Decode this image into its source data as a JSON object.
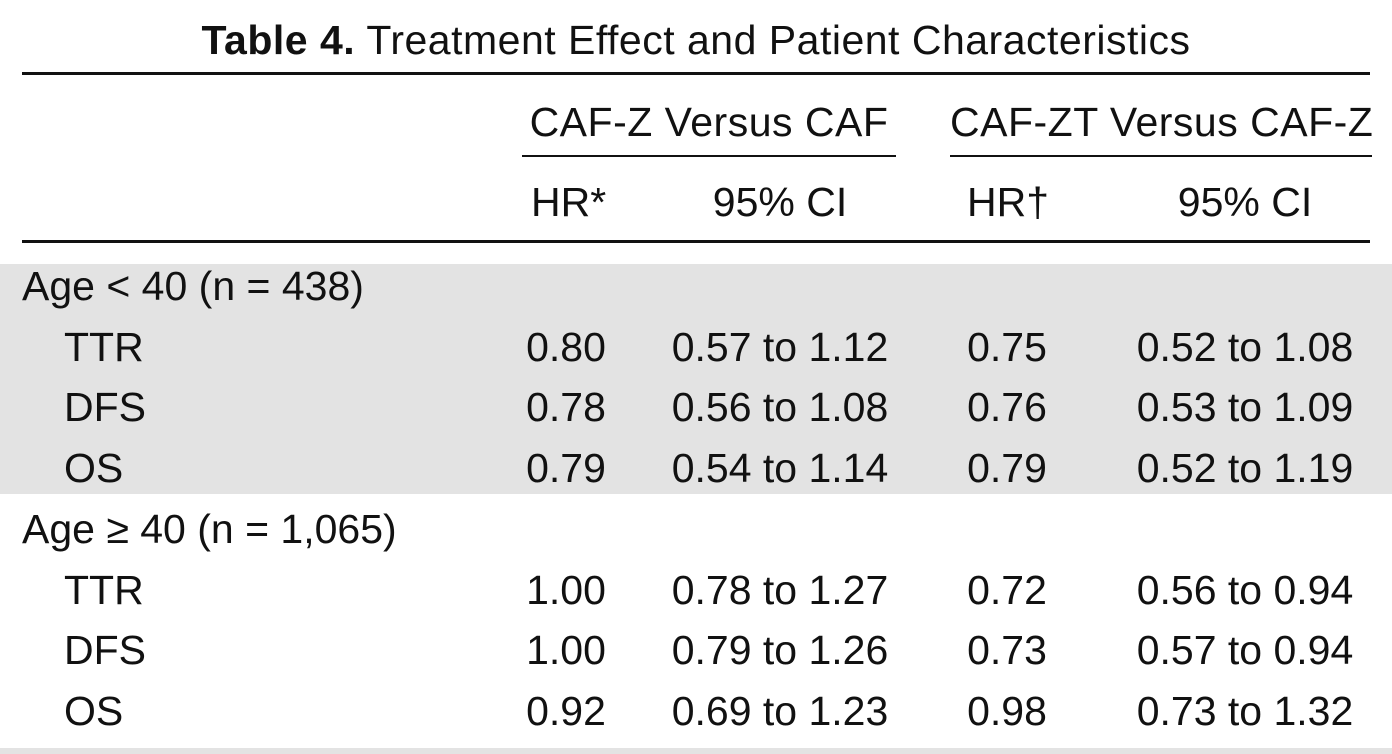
{
  "table": {
    "title_label": "Table 4.",
    "title_text": " Treatment Effect and Patient Characteristics",
    "group_headers": [
      "CAF-Z Versus CAF",
      "CAF-ZT Versus CAF-Z"
    ],
    "sub_headers": [
      "HR*",
      "95% CI",
      "HR†",
      "95% CI"
    ],
    "shading_color": "#e3e3e3",
    "sections": [
      {
        "label": "Age < 40 (n = 438)",
        "shaded": true,
        "rows": [
          {
            "name": "TTR",
            "hr1": "0.80",
            "ci1": "0.57 to 1.12",
            "hr2": "0.75",
            "ci2": "0.52 to 1.08"
          },
          {
            "name": "DFS",
            "hr1": "0.78",
            "ci1": "0.56 to 1.08",
            "hr2": "0.76",
            "ci2": "0.53 to 1.09"
          },
          {
            "name": "OS",
            "hr1": "0.79",
            "ci1": "0.54 to 1.14",
            "hr2": "0.79",
            "ci2": "0.52 to 1.19"
          }
        ]
      },
      {
        "label": "Age ≥ 40 (n = 1,065)",
        "shaded": false,
        "rows": [
          {
            "name": "TTR",
            "hr1": "1.00",
            "ci1": "0.78 to 1.27",
            "hr2": "0.72",
            "ci2": "0.56 to 0.94"
          },
          {
            "name": "DFS",
            "hr1": "1.00",
            "ci1": "0.79 to 1.26",
            "hr2": "0.73",
            "ci2": "0.57 to 0.94"
          },
          {
            "name": "OS",
            "hr1": "0.92",
            "ci1": "0.69 to 1.23",
            "hr2": "0.98",
            "ci2": "0.73 to 1.32"
          }
        ]
      }
    ]
  }
}
